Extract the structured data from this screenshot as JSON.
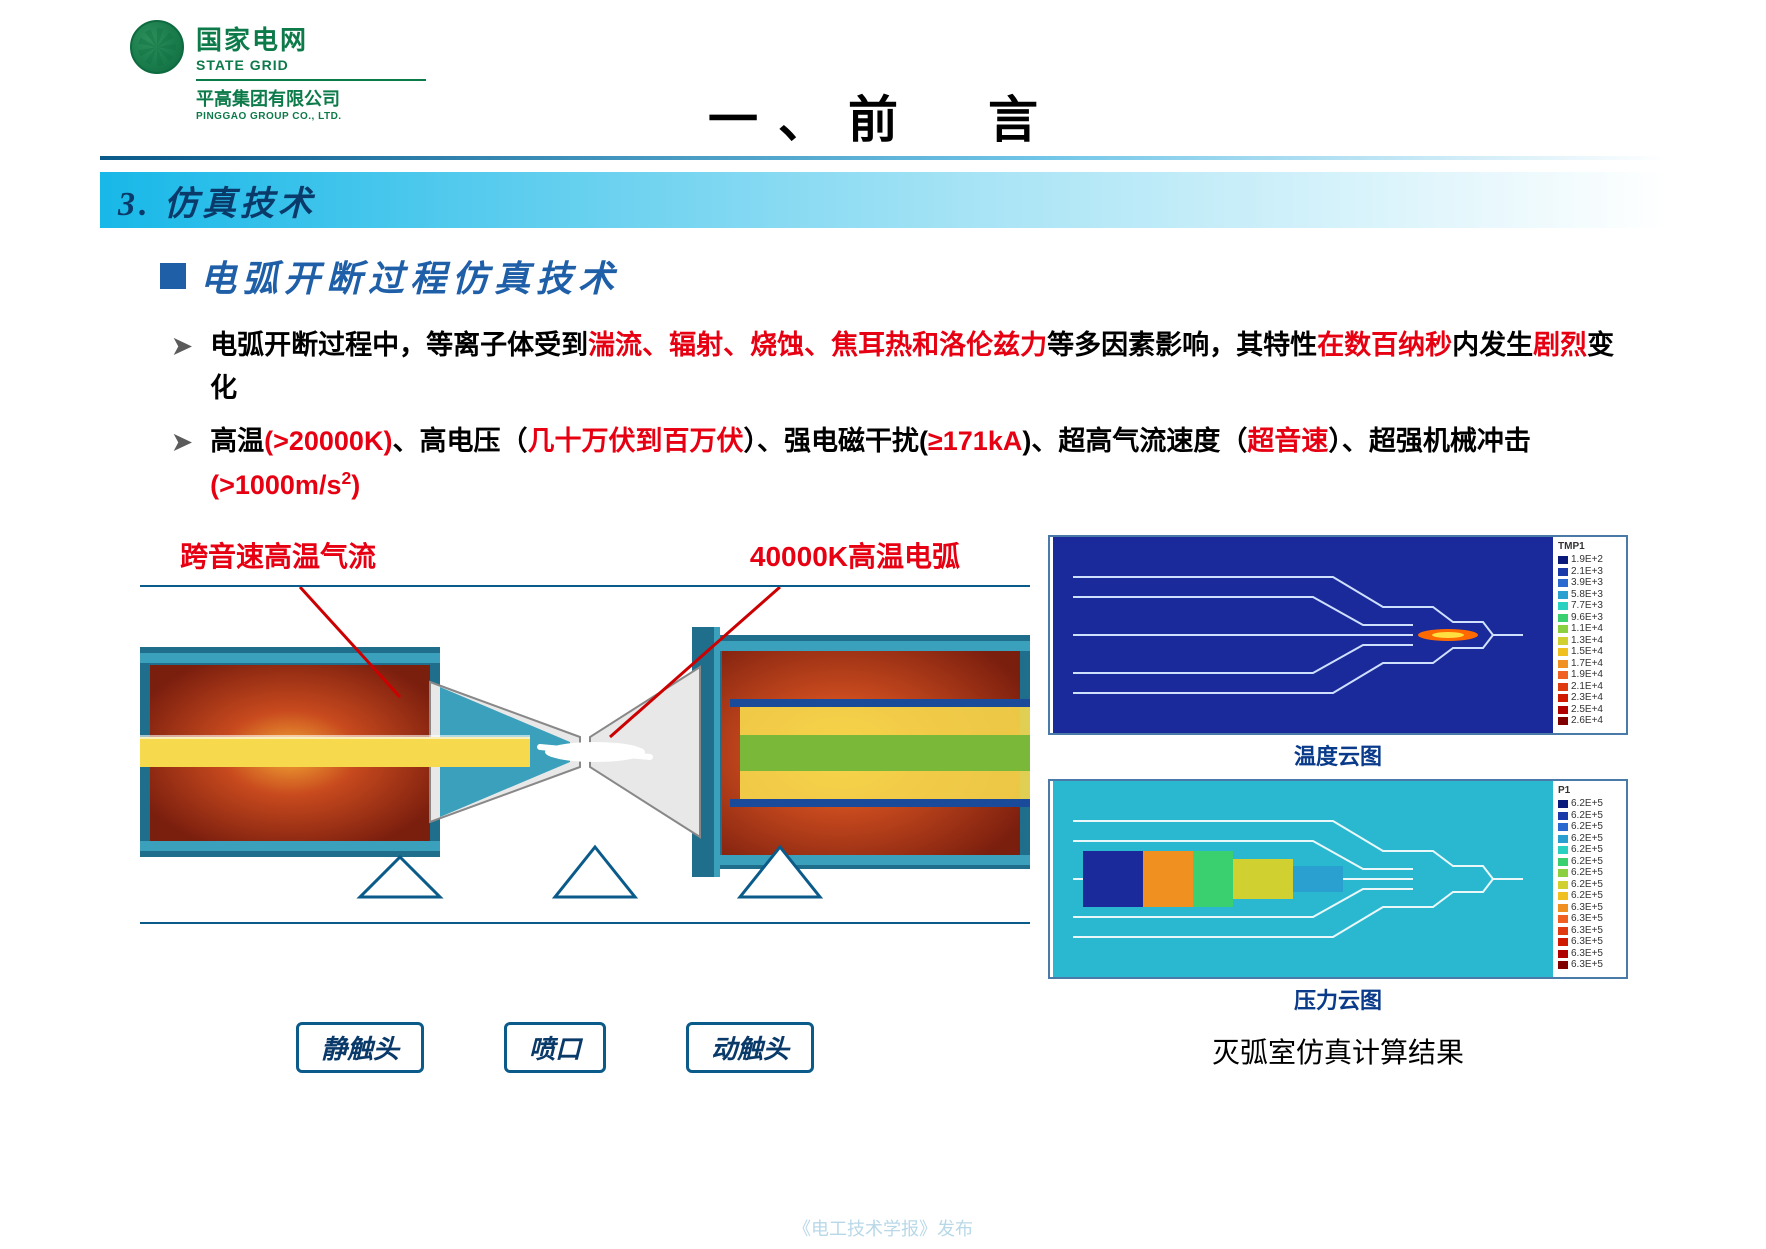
{
  "logo": {
    "cn": "国家电网",
    "en": "STATE GRID",
    "sub_cn": "平高集团有限公司",
    "sub_en": "PINGGAO GROUP CO., LTD."
  },
  "page_title": "一、前　言",
  "section_number_title": "3. 仿真技术",
  "h2": "电弧开断过程仿真技术",
  "bullet1": {
    "p1": "电弧开断过程中，等离子体受到",
    "r1": "湍流、辐射、烧蚀、焦耳热和洛伦兹力",
    "p2": "等多因素影响，其特性",
    "r2": "在数百纳秒",
    "p3": "内发生",
    "r3": "剧烈",
    "p4": "变化"
  },
  "bullet2": {
    "p1": "高温",
    "r1": "(>20000K)",
    "p2": "、高电压（",
    "r2": "几十万伏到百万伏",
    "p3": "）、强电磁干扰(",
    "r3": "≥171kA",
    "p4": ")、超高气流速度（",
    "r4": "超音速",
    "p5": "）、超强机械冲击",
    "r5": "(>1000m/s",
    "sup": "2",
    "r5b": ")"
  },
  "left_fig": {
    "label_left": "跨音速高温气流",
    "label_right": "40000K高温电弧",
    "callout_static": "静触头",
    "callout_nozzle": "喷口",
    "callout_moving": "动触头",
    "colors": {
      "casing": "#1f6e8c",
      "casing_light": "#3aa0bc",
      "plasma_dark": "#7a1e0e",
      "plasma_mid": "#c84a1e",
      "plasma_hot": "#f4a934",
      "core_yellow": "#f6d94c",
      "nozzle": "#1a4a9a",
      "arc_white": "#ffffff",
      "inner_green": "#7ab83a"
    }
  },
  "sim": {
    "temp_caption": "温度云图",
    "press_caption": "压力云图",
    "result_caption": "灭弧室仿真计算结果",
    "temp_legend_title": "TMP1",
    "temp_legend": [
      {
        "v": "1.9E+2",
        "c": "#0a1a7a"
      },
      {
        "v": "2.1E+3",
        "c": "#1a3aaa"
      },
      {
        "v": "3.9E+3",
        "c": "#2a6ad0"
      },
      {
        "v": "5.8E+3",
        "c": "#2aa0d0"
      },
      {
        "v": "7.7E+3",
        "c": "#2ad0c0"
      },
      {
        "v": "9.6E+3",
        "c": "#3ad070"
      },
      {
        "v": "1.1E+4",
        "c": "#8ad040"
      },
      {
        "v": "1.3E+4",
        "c": "#d0d030"
      },
      {
        "v": "1.5E+4",
        "c": "#f0c020"
      },
      {
        "v": "1.7E+4",
        "c": "#f09020"
      },
      {
        "v": "1.9E+4",
        "c": "#f06020"
      },
      {
        "v": "2.1E+4",
        "c": "#e03a10"
      },
      {
        "v": "2.3E+4",
        "c": "#d01a00"
      },
      {
        "v": "2.5E+4",
        "c": "#b00000"
      },
      {
        "v": "2.6E+4",
        "c": "#800000"
      }
    ],
    "press_legend_title": "P1",
    "press_legend": [
      {
        "v": "6.2E+5",
        "c": "#0a1a7a"
      },
      {
        "v": "6.2E+5",
        "c": "#1a3aaa"
      },
      {
        "v": "6.2E+5",
        "c": "#2a6ad0"
      },
      {
        "v": "6.2E+5",
        "c": "#2aa0d0"
      },
      {
        "v": "6.2E+5",
        "c": "#2ad0c0"
      },
      {
        "v": "6.2E+5",
        "c": "#3ad070"
      },
      {
        "v": "6.2E+5",
        "c": "#8ad040"
      },
      {
        "v": "6.2E+5",
        "c": "#d0d030"
      },
      {
        "v": "6.2E+5",
        "c": "#f0c020"
      },
      {
        "v": "6.3E+5",
        "c": "#f09020"
      },
      {
        "v": "6.3E+5",
        "c": "#f06020"
      },
      {
        "v": "6.3E+5",
        "c": "#e03a10"
      },
      {
        "v": "6.3E+5",
        "c": "#d01a00"
      },
      {
        "v": "6.3E+5",
        "c": "#b00000"
      },
      {
        "v": "6.3E+5",
        "c": "#800000"
      }
    ],
    "temp_plot_bg": "#1a2a9a",
    "press_plot_bg": "#2ab8d0"
  },
  "footer": "《电工技术学报》发布"
}
